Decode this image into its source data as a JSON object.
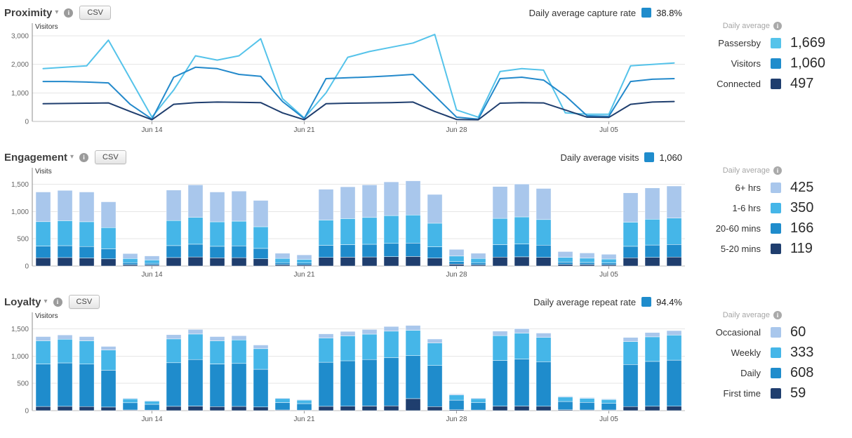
{
  "sections": [
    {
      "title": "Proximity",
      "csv_label": "CSV",
      "summary_label": "Daily average capture rate",
      "summary_value": "38.8%",
      "summary_color": "#1f8ccc",
      "legend_header": "Daily average",
      "legend": [
        {
          "label": "Passersby",
          "value": "1,669",
          "color": "#55c3ea"
        },
        {
          "label": "Visitors",
          "value": "1,060",
          "color": "#1f8ccc"
        },
        {
          "label": "Connected",
          "value": "497",
          "color": "#1f3e6e"
        }
      ]
    },
    {
      "title": "Engagement",
      "csv_label": "CSV",
      "summary_label": "Daily average visits",
      "summary_value": "1,060",
      "summary_color": "#1f8ccc",
      "legend_header": "Daily average",
      "legend": [
        {
          "label": "6+ hrs",
          "value": "425",
          "color": "#a9c7ec"
        },
        {
          "label": "1-6 hrs",
          "value": "350",
          "color": "#45b6e8"
        },
        {
          "label": "20-60 mins",
          "value": "166",
          "color": "#1f8ccc"
        },
        {
          "label": "5-20 mins",
          "value": "119",
          "color": "#1f3e6e"
        }
      ]
    },
    {
      "title": "Loyalty",
      "csv_label": "CSV",
      "summary_label": "Daily average repeat rate",
      "summary_value": "94.4%",
      "summary_color": "#1f8ccc",
      "legend_header": "Daily average",
      "legend": [
        {
          "label": "Occasional",
          "value": "60",
          "color": "#a9c7ec"
        },
        {
          "label": "Weekly",
          "value": "333",
          "color": "#45b6e8"
        },
        {
          "label": "Daily",
          "value": "608",
          "color": "#1f8ccc"
        },
        {
          "label": "First time",
          "value": "59",
          "color": "#1f3e6e"
        }
      ]
    }
  ],
  "chart_data": [
    {
      "id": "proximity",
      "type": "line",
      "title": "Proximity",
      "ylabel": "Visitors",
      "ylim": [
        0,
        3150
      ],
      "yticks": [
        0,
        1000,
        2000,
        3000
      ],
      "grid": true,
      "x_dates": [
        "Jun 09",
        "Jun 10",
        "Jun 11",
        "Jun 12",
        "Jun 13",
        "Jun 14",
        "Jun 15",
        "Jun 16",
        "Jun 17",
        "Jun 18",
        "Jun 19",
        "Jun 20",
        "Jun 21",
        "Jun 22",
        "Jun 23",
        "Jun 24",
        "Jun 25",
        "Jun 26",
        "Jun 27",
        "Jun 28",
        "Jun 29",
        "Jun 30",
        "Jul 01",
        "Jul 02",
        "Jul 03",
        "Jul 04",
        "Jul 05",
        "Jul 06",
        "Jul 07",
        "Jul 08"
      ],
      "x_tick_labels": [
        "Jun 14",
        "Jun 21",
        "Jun 28",
        "Jul 05"
      ],
      "x_tick_indices": [
        5,
        12,
        19,
        26
      ],
      "series": [
        {
          "name": "Passersby",
          "color": "#55c3ea",
          "values": [
            1850,
            1900,
            1950,
            2850,
            1500,
            150,
            1100,
            2300,
            2150,
            2300,
            2900,
            800,
            120,
            1000,
            2250,
            2450,
            2600,
            2750,
            3050,
            400,
            150,
            1750,
            1850,
            1800,
            300,
            250,
            250,
            1950,
            2000,
            2050
          ]
        },
        {
          "name": "Visitors",
          "color": "#2389cb",
          "values": [
            1400,
            1400,
            1380,
            1350,
            600,
            80,
            1550,
            1900,
            1850,
            1650,
            1580,
            700,
            100,
            1500,
            1530,
            1560,
            1600,
            1650,
            900,
            150,
            80,
            1500,
            1550,
            1450,
            900,
            200,
            180,
            1400,
            1480,
            1500
          ]
        },
        {
          "name": "Connected",
          "color": "#1f3e6e",
          "values": [
            620,
            630,
            640,
            650,
            350,
            60,
            600,
            660,
            680,
            670,
            660,
            300,
            60,
            620,
            640,
            650,
            660,
            680,
            350,
            70,
            60,
            640,
            660,
            650,
            400,
            150,
            140,
            600,
            680,
            700
          ]
        }
      ]
    },
    {
      "id": "engagement",
      "type": "stacked-bar",
      "title": "Engagement",
      "ylabel": "Visits",
      "ylim": [
        0,
        1650
      ],
      "yticks": [
        0,
        500,
        1000,
        1500
      ],
      "grid": true,
      "stack_order": "bottom-to-top",
      "x_dates": [
        "Jun 09",
        "Jun 10",
        "Jun 11",
        "Jun 12",
        "Jun 13",
        "Jun 14",
        "Jun 15",
        "Jun 16",
        "Jun 17",
        "Jun 18",
        "Jun 19",
        "Jun 20",
        "Jun 21",
        "Jun 22",
        "Jun 23",
        "Jun 24",
        "Jun 25",
        "Jun 26",
        "Jun 27",
        "Jun 28",
        "Jun 29",
        "Jun 30",
        "Jul 01",
        "Jul 02",
        "Jul 03",
        "Jul 04",
        "Jul 05",
        "Jul 06",
        "Jul 07",
        "Jul 08"
      ],
      "x_tick_labels": [
        "Jun 14",
        "Jun 21",
        "Jun 28",
        "Jul 05"
      ],
      "x_tick_indices": [
        5,
        12,
        19,
        26
      ],
      "series": [
        {
          "name": "5-20 mins",
          "color": "#1f3e6e",
          "values": [
            152,
            156,
            148,
            132,
            26,
            21,
            156,
            167,
            150,
            154,
            135,
            26,
            23,
            158,
            163,
            166,
            173,
            175,
            147,
            34,
            25,
            164,
            169,
            160,
            30,
            27,
            24,
            151,
            161,
            165
          ]
        },
        {
          "name": "20-60 mins",
          "color": "#1f8ccc",
          "values": [
            214,
            218,
            210,
            185,
            36,
            29,
            219,
            234,
            212,
            216,
            189,
            37,
            32,
            221,
            228,
            233,
            243,
            246,
            206,
            48,
            36,
            229,
            236,
            224,
            42,
            38,
            34,
            211,
            225,
            231
          ]
        },
        {
          "name": "1-6 hrs",
          "color": "#45b6e8",
          "values": [
            449,
            459,
            455,
            389,
            76,
            61,
            460,
            492,
            450,
            454,
            398,
            78,
            68,
            465,
            480,
            493,
            510,
            516,
            434,
            101,
            79,
            482,
            497,
            470,
            87,
            79,
            71,
            444,
            474,
            485
          ]
        },
        {
          "name": "6+ hrs",
          "color": "#a9c7ec",
          "values": [
            545,
            557,
            547,
            474,
            92,
            74,
            560,
            597,
            548,
            551,
            483,
            94,
            82,
            566,
            584,
            598,
            619,
            628,
            528,
            122,
            95,
            585,
            603,
            571,
            106,
            96,
            86,
            539,
            575,
            589
          ]
        }
      ]
    },
    {
      "id": "loyalty",
      "type": "stacked-bar",
      "title": "Loyalty",
      "ylabel": "Visitors",
      "ylim": [
        0,
        1650
      ],
      "yticks": [
        0,
        500,
        1000,
        1500
      ],
      "grid": true,
      "stack_order": "bottom-to-top",
      "x_dates": [
        "Jun 09",
        "Jun 10",
        "Jun 11",
        "Jun 12",
        "Jun 13",
        "Jun 14",
        "Jun 15",
        "Jun 16",
        "Jun 17",
        "Jun 18",
        "Jun 19",
        "Jun 20",
        "Jun 21",
        "Jun 22",
        "Jun 23",
        "Jun 24",
        "Jun 25",
        "Jun 26",
        "Jun 27",
        "Jun 28",
        "Jun 29",
        "Jun 30",
        "Jul 01",
        "Jul 02",
        "Jul 03",
        "Jul 04",
        "Jul 05",
        "Jul 06",
        "Jul 07",
        "Jul 08"
      ],
      "x_tick_labels": [
        "Jun 14",
        "Jun 21",
        "Jun 28",
        "Jul 05"
      ],
      "x_tick_indices": [
        5,
        12,
        19,
        26
      ],
      "series": [
        {
          "name": "First time",
          "color": "#1f3e6e",
          "values": [
            76,
            78,
            75,
            66,
            13,
            10,
            78,
            83,
            74,
            77,
            67,
            13,
            11,
            79,
            81,
            84,
            87,
            220,
            74,
            17,
            12,
            82,
            84,
            80,
            15,
            13,
            12,
            75,
            80,
            82
          ]
        },
        {
          "name": "Daily",
          "color": "#1f8ccc",
          "values": [
            781,
            798,
            780,
            677,
            132,
            106,
            801,
            855,
            782,
            789,
            692,
            135,
            118,
            809,
            835,
            854,
            887,
            790,
            755,
            175,
            136,
            838,
            864,
            818,
            152,
            138,
            123,
            772,
            824,
            844
          ]
        },
        {
          "name": "Weekly",
          "color": "#45b6e8",
          "values": [
            427,
            436,
            428,
            371,
            72,
            58,
            438,
            468,
            426,
            432,
            378,
            74,
            64,
            443,
            457,
            467,
            485,
            465,
            413,
            96,
            73,
            458,
            473,
            447,
            83,
            75,
            68,
            422,
            451,
            462
          ]
        },
        {
          "name": "Occasional",
          "color": "#a9c7ec",
          "values": [
            76,
            78,
            77,
            66,
            13,
            11,
            78,
            84,
            78,
            77,
            68,
            13,
            12,
            79,
            82,
            85,
            86,
            90,
            73,
            17,
            14,
            82,
            84,
            80,
            15,
            14,
            12,
            76,
            80,
            82
          ]
        }
      ]
    }
  ]
}
